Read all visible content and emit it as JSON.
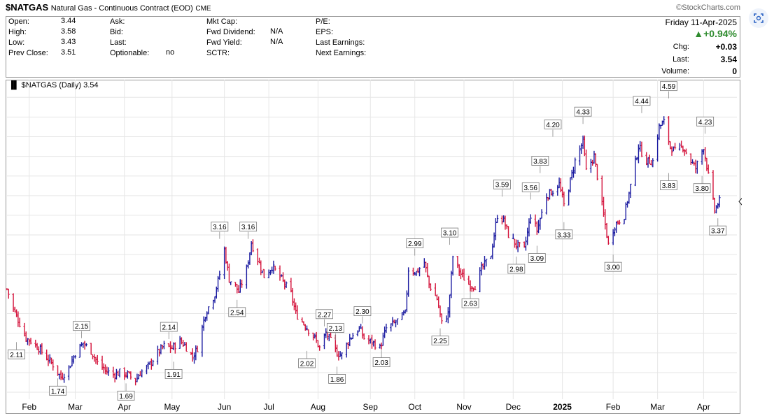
{
  "header": {
    "symbol": "$NATGAS",
    "description": "Natural Gas - Continuous Contract (EOD)",
    "exchange": "CME",
    "brand": "©StockCharts.com"
  },
  "quote": {
    "open_label": "Open:",
    "open": "3.44",
    "high_label": "High:",
    "high": "3.58",
    "low_label": "Low:",
    "low": "3.43",
    "prev_label": "Prev Close:",
    "prev": "3.51",
    "ask_label": "Ask:",
    "bid_label": "Bid:",
    "last_label": "Last:",
    "optionable_label": "Optionable:",
    "optionable": "no",
    "mktcap_label": "Mkt Cap:",
    "fwd_div_label": "Fwd Dividend:",
    "fwd_div": "N/A",
    "fwd_yield_label": "Fwd Yield:",
    "fwd_yield": "N/A",
    "sctr_label": "SCTR:",
    "pe_label": "P/E:",
    "eps_label": "EPS:",
    "last_earn_label": "Last Earnings:",
    "next_earn_label": "Next Earnings:",
    "date": "Friday 11-Apr-2025",
    "pct_change": "▲+0.94%",
    "chg_label": "Chg:",
    "chg": "+0.03",
    "last2_label": "Last:",
    "last2": "3.54",
    "vol_label": "Volume:",
    "vol": "0"
  },
  "colors": {
    "up": "#1a1aa0",
    "down": "#d4143c",
    "grid": "#e6e6e6",
    "pct": "#2e8b2e"
  },
  "chart_data": {
    "type": "ohlc",
    "legend": "$NATGAS (Daily) 3.54",
    "last_value_tag": "3.54",
    "ylim": [
      1.55,
      4.68
    ],
    "yticks": [
      1.6,
      1.8,
      2.0,
      2.2,
      2.4,
      2.6,
      2.8,
      3.0,
      3.2,
      3.4,
      3.6,
      3.8,
      4.0,
      4.2,
      4.4,
      4.6
    ],
    "xlim": [
      "2024-01-18",
      "2025-04-22"
    ],
    "xticks": [
      {
        "date": "2024-02-01",
        "label": "Feb"
      },
      {
        "date": "2024-03-01",
        "label": "Mar"
      },
      {
        "date": "2024-04-01",
        "label": "Apr"
      },
      {
        "date": "2024-05-01",
        "label": "May"
      },
      {
        "date": "2024-06-03",
        "label": "Jun"
      },
      {
        "date": "2024-07-01",
        "label": "Jul"
      },
      {
        "date": "2024-08-01",
        "label": "Aug"
      },
      {
        "date": "2024-09-03",
        "label": "Sep"
      },
      {
        "date": "2024-10-01",
        "label": "Oct"
      },
      {
        "date": "2024-11-01",
        "label": "Nov"
      },
      {
        "date": "2024-12-02",
        "label": "Dec"
      },
      {
        "date": "2025-01-02",
        "label": "2025"
      },
      {
        "date": "2025-02-03",
        "label": "Feb"
      },
      {
        "date": "2025-03-03",
        "label": "Mar"
      },
      {
        "date": "2025-04-01",
        "label": "Apr"
      }
    ],
    "path": [
      [
        "2024-01-18",
        2.65
      ],
      [
        "2024-01-22",
        2.45
      ],
      [
        "2024-01-26",
        2.3
      ],
      [
        "2024-01-30",
        2.15
      ],
      [
        "2024-02-02",
        2.12
      ],
      [
        "2024-02-07",
        2.05
      ],
      [
        "2024-02-12",
        1.95
      ],
      [
        "2024-02-16",
        1.88
      ],
      [
        "2024-02-21",
        1.75
      ],
      [
        "2024-02-26",
        1.85
      ],
      [
        "2024-03-01",
        2.0
      ],
      [
        "2024-03-06",
        2.1
      ],
      [
        "2024-03-11",
        2.02
      ],
      [
        "2024-03-15",
        1.9
      ],
      [
        "2024-03-20",
        1.82
      ],
      [
        "2024-03-25",
        1.78
      ],
      [
        "2024-03-29",
        1.8
      ],
      [
        "2024-04-03",
        1.78
      ],
      [
        "2024-04-08",
        1.72
      ],
      [
        "2024-04-11",
        1.8
      ],
      [
        "2024-04-16",
        1.86
      ],
      [
        "2024-04-22",
        2.0
      ],
      [
        "2024-04-26",
        2.07
      ],
      [
        "2024-05-01",
        2.05
      ],
      [
        "2024-05-06",
        2.12
      ],
      [
        "2024-05-09",
        2.08
      ],
      [
        "2024-05-14",
        1.96
      ],
      [
        "2024-05-17",
        2.05
      ],
      [
        "2024-05-22",
        2.4
      ],
      [
        "2024-05-28",
        2.6
      ],
      [
        "2024-05-31",
        2.8
      ],
      [
        "2024-06-03",
        3.05
      ],
      [
        "2024-06-06",
        2.75
      ],
      [
        "2024-06-10",
        2.68
      ],
      [
        "2024-06-12",
        2.62
      ],
      [
        "2024-06-17",
        2.85
      ],
      [
        "2024-06-20",
        3.12
      ],
      [
        "2024-06-24",
        2.95
      ],
      [
        "2024-06-28",
        2.78
      ],
      [
        "2024-07-03",
        2.88
      ],
      [
        "2024-07-09",
        2.75
      ],
      [
        "2024-07-15",
        2.6
      ],
      [
        "2024-07-18",
        2.4
      ],
      [
        "2024-07-23",
        2.3
      ],
      [
        "2024-07-30",
        2.15
      ],
      [
        "2024-08-02",
        2.05
      ],
      [
        "2024-08-06",
        2.2
      ],
      [
        "2024-08-09",
        2.12
      ],
      [
        "2024-08-13",
        2.0
      ],
      [
        "2024-08-16",
        1.98
      ],
      [
        "2024-08-21",
        2.15
      ],
      [
        "2024-08-27",
        2.25
      ],
      [
        "2024-08-30",
        2.15
      ],
      [
        "2024-09-05",
        2.1
      ],
      [
        "2024-09-09",
        2.05
      ],
      [
        "2024-09-13",
        2.25
      ],
      [
        "2024-09-18",
        2.3
      ],
      [
        "2024-09-25",
        2.4
      ],
      [
        "2024-09-27",
        2.85
      ],
      [
        "2024-10-02",
        2.82
      ],
      [
        "2024-10-07",
        2.92
      ],
      [
        "2024-10-10",
        2.7
      ],
      [
        "2024-10-15",
        2.55
      ],
      [
        "2024-10-18",
        2.3
      ],
      [
        "2024-10-22",
        2.4
      ],
      [
        "2024-10-25",
        2.98
      ],
      [
        "2024-10-30",
        2.8
      ],
      [
        "2024-11-04",
        2.7
      ],
      [
        "2024-11-08",
        2.68
      ],
      [
        "2024-11-12",
        2.85
      ],
      [
        "2024-11-18",
        3.0
      ],
      [
        "2024-11-22",
        3.4
      ],
      [
        "2024-11-26",
        3.35
      ],
      [
        "2024-11-29",
        3.2
      ],
      [
        "2024-12-04",
        3.1
      ],
      [
        "2024-12-09",
        3.05
      ],
      [
        "2024-12-13",
        3.4
      ],
      [
        "2024-12-17",
        3.25
      ],
      [
        "2024-12-23",
        3.6
      ],
      [
        "2024-12-27",
        3.65
      ],
      [
        "2024-12-31",
        3.72
      ],
      [
        "2025-01-03",
        3.5
      ],
      [
        "2025-01-07",
        3.75
      ],
      [
        "2025-01-10",
        3.95
      ],
      [
        "2025-01-15",
        4.15
      ],
      [
        "2025-01-17",
        3.85
      ],
      [
        "2025-01-22",
        4.0
      ],
      [
        "2025-01-27",
        3.5
      ],
      [
        "2025-01-31",
        3.1
      ],
      [
        "2025-02-04",
        3.3
      ],
      [
        "2025-02-10",
        3.4
      ],
      [
        "2025-02-14",
        3.7
      ],
      [
        "2025-02-19",
        4.1
      ],
      [
        "2025-02-24",
        3.95
      ],
      [
        "2025-02-28",
        3.95
      ],
      [
        "2025-03-04",
        4.3
      ],
      [
        "2025-03-07",
        4.35
      ],
      [
        "2025-03-11",
        4.1
      ],
      [
        "2025-03-14",
        4.05
      ],
      [
        "2025-03-19",
        4.1
      ],
      [
        "2025-03-24",
        3.95
      ],
      [
        "2025-03-27",
        3.88
      ],
      [
        "2025-04-01",
        4.1
      ],
      [
        "2025-04-04",
        3.8
      ],
      [
        "2025-04-08",
        3.45
      ],
      [
        "2025-04-11",
        3.54
      ]
    ],
    "data_labels": [
      {
        "date": "2024-01-24",
        "value": 2.11,
        "text": "2.11"
      },
      {
        "date": "2024-02-19",
        "value": 1.74,
        "text": "1.74"
      },
      {
        "date": "2024-03-05",
        "value": 2.15,
        "text": "2.15"
      },
      {
        "date": "2024-04-02",
        "value": 1.69,
        "text": "1.69"
      },
      {
        "date": "2024-04-29",
        "value": 2.14,
        "text": "2.14"
      },
      {
        "date": "2024-05-02",
        "value": 1.91,
        "text": "1.91"
      },
      {
        "date": "2024-05-31",
        "value": 3.16,
        "text": "3.16"
      },
      {
        "date": "2024-06-11",
        "value": 2.54,
        "text": "2.54"
      },
      {
        "date": "2024-06-18",
        "value": 3.16,
        "text": "3.16"
      },
      {
        "date": "2024-07-25",
        "value": 2.02,
        "text": "2.02"
      },
      {
        "date": "2024-08-05",
        "value": 2.27,
        "text": "2.27"
      },
      {
        "date": "2024-08-12",
        "value": 2.13,
        "text": "2.13"
      },
      {
        "date": "2024-08-13",
        "value": 1.86,
        "text": "1.86"
      },
      {
        "date": "2024-08-29",
        "value": 2.3,
        "text": "2.30"
      },
      {
        "date": "2024-09-10",
        "value": 2.03,
        "text": "2.03"
      },
      {
        "date": "2024-10-01",
        "value": 2.99,
        "text": "2.99"
      },
      {
        "date": "2024-10-17",
        "value": 2.25,
        "text": "2.25"
      },
      {
        "date": "2024-10-23",
        "value": 3.1,
        "text": "3.10"
      },
      {
        "date": "2024-11-05",
        "value": 2.63,
        "text": "2.63"
      },
      {
        "date": "2024-11-25",
        "value": 3.59,
        "text": "3.59"
      },
      {
        "date": "2024-12-04",
        "value": 2.98,
        "text": "2.98"
      },
      {
        "date": "2024-12-13",
        "value": 3.56,
        "text": "3.56"
      },
      {
        "date": "2024-12-17",
        "value": 3.09,
        "text": "3.09"
      },
      {
        "date": "2024-12-19",
        "value": 3.83,
        "text": "3.83"
      },
      {
        "date": "2024-12-27",
        "value": 4.2,
        "text": "4.20"
      },
      {
        "date": "2025-01-03",
        "value": 3.33,
        "text": "3.33"
      },
      {
        "date": "2025-01-15",
        "value": 4.33,
        "text": "4.33"
      },
      {
        "date": "2025-02-03",
        "value": 3.0,
        "text": "3.00"
      },
      {
        "date": "2025-02-21",
        "value": 4.44,
        "text": "4.44"
      },
      {
        "date": "2025-03-10",
        "value": 4.59,
        "text": "4.59"
      },
      {
        "date": "2025-03-10",
        "value": 3.83,
        "text": "3.83"
      },
      {
        "date": "2025-03-31",
        "value": 3.8,
        "text": "3.80"
      },
      {
        "date": "2025-04-02",
        "value": 4.23,
        "text": "4.23"
      },
      {
        "date": "2025-04-10",
        "value": 3.37,
        "text": "3.37"
      }
    ],
    "below_labels": [
      "2.11",
      "1.74",
      "1.69",
      "1.91",
      "2.54",
      "2.02",
      "1.86",
      "2.03",
      "2.25",
      "2.63",
      "2.98",
      "3.09",
      "3.33",
      "3.00",
      "3.83",
      "3.80",
      "3.37"
    ]
  }
}
